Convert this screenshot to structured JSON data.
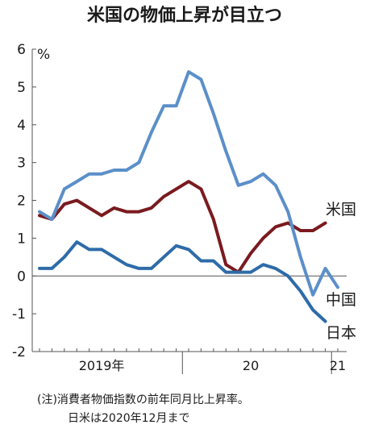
{
  "chart_data": {
    "type": "line",
    "title": "米国の物価上昇が目立つ",
    "ylabel": "%",
    "ylim": [
      -2,
      6
    ],
    "yticks": [
      -2,
      -1,
      0,
      1,
      2,
      3,
      4,
      5,
      6
    ],
    "ytick_labels": [
      "-2",
      "-1",
      "0",
      "1",
      "2",
      "3",
      "4",
      "5",
      "6"
    ],
    "x": [
      "2019-01",
      "2019-02",
      "2019-03",
      "2019-04",
      "2019-05",
      "2019-06",
      "2019-07",
      "2019-08",
      "2019-09",
      "2019-10",
      "2019-11",
      "2019-12",
      "2020-01",
      "2020-02",
      "2020-03",
      "2020-04",
      "2020-05",
      "2020-06",
      "2020-07",
      "2020-08",
      "2020-09",
      "2020-10",
      "2020-11",
      "2020-12",
      "2021-01"
    ],
    "x_tick_labels": [
      {
        "at": "2019-06",
        "label": "2019年"
      },
      {
        "at": "2020-06",
        "label": "20"
      },
      {
        "at": "2021-01",
        "label": "21"
      }
    ],
    "year_separators": [
      "2019-12",
      "2020-12"
    ],
    "zero_line": true,
    "grid": false,
    "series": [
      {
        "name": "米国",
        "color": "#7a1a1f",
        "values": [
          1.6,
          1.5,
          1.9,
          2.0,
          1.8,
          1.6,
          1.8,
          1.7,
          1.7,
          1.8,
          2.1,
          2.3,
          2.5,
          2.3,
          1.5,
          0.3,
          0.1,
          0.6,
          1.0,
          1.3,
          1.4,
          1.2,
          1.2,
          1.4,
          null
        ]
      },
      {
        "name": "中国",
        "color": "#5b8fc9",
        "values": [
          1.7,
          1.5,
          2.3,
          2.5,
          2.7,
          2.7,
          2.8,
          2.8,
          3.0,
          3.8,
          4.5,
          4.5,
          5.4,
          5.2,
          4.3,
          3.3,
          2.4,
          2.5,
          2.7,
          2.4,
          1.7,
          0.5,
          -0.5,
          0.2,
          -0.3
        ]
      },
      {
        "name": "日本",
        "color": "#2e6ba8",
        "values": [
          0.2,
          0.2,
          0.5,
          0.9,
          0.7,
          0.7,
          0.5,
          0.3,
          0.2,
          0.2,
          0.5,
          0.8,
          0.7,
          0.4,
          0.4,
          0.1,
          0.1,
          0.1,
          0.3,
          0.2,
          0.0,
          -0.4,
          -0.9,
          -1.2,
          null
        ]
      }
    ],
    "note_lines": [
      "(注)消費者物価指数の前年同月比上昇率。",
      "日米は2020年12月まで"
    ]
  }
}
